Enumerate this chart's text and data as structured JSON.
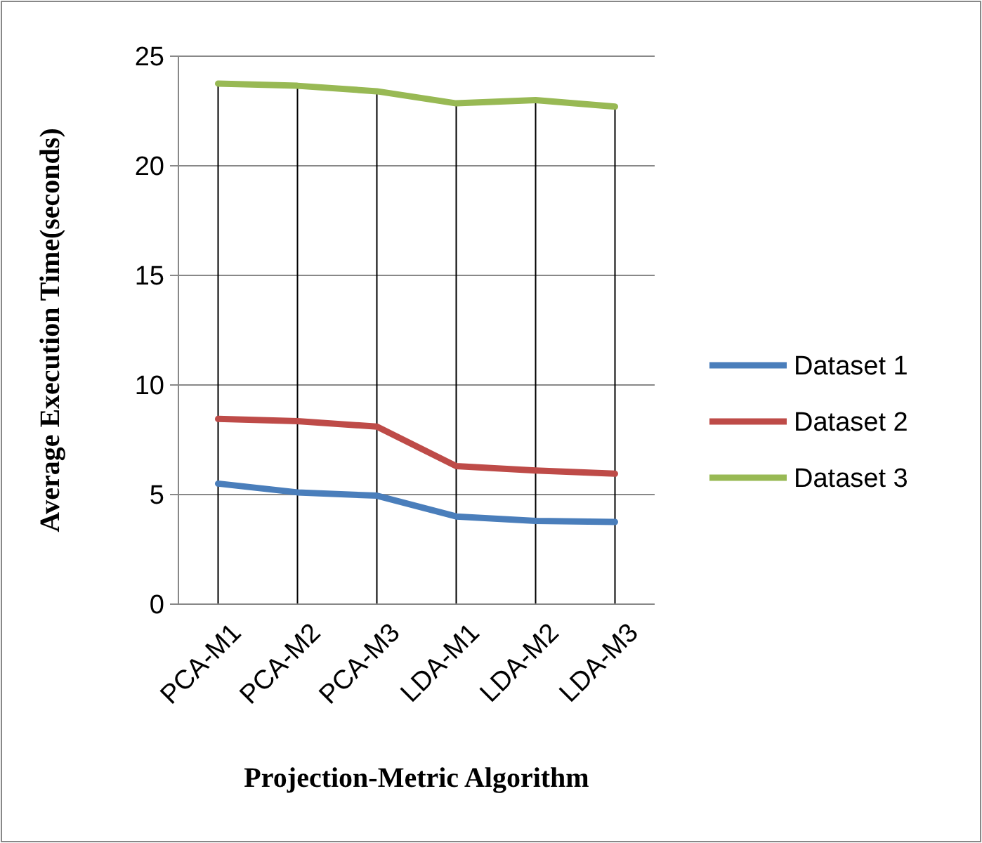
{
  "chart_data": {
    "type": "line",
    "xlabel": "Projection-Metric Algorithm",
    "ylabel": "Average Execution Time(seconds)",
    "categories": [
      "PCA-M1",
      "PCA-M2",
      "PCA-M3",
      "LDA-M1",
      "LDA-M2",
      "LDA-M3"
    ],
    "series": [
      {
        "name": "Dataset 1",
        "color": "#4a7ebb",
        "values": [
          5.5,
          5.1,
          4.95,
          4.0,
          3.8,
          3.75
        ]
      },
      {
        "name": "Dataset 2",
        "color": "#be4b48",
        "values": [
          8.45,
          8.35,
          8.1,
          6.3,
          6.1,
          5.95
        ]
      },
      {
        "name": "Dataset 3",
        "color": "#98b954",
        "values": [
          23.75,
          23.65,
          23.4,
          22.85,
          23.0,
          22.7
        ]
      }
    ],
    "ylim": [
      0,
      25
    ],
    "yticks": [
      0,
      5,
      10,
      15,
      20,
      25
    ],
    "grid": true,
    "legend": "right",
    "marker": "none",
    "line_style": "solid"
  }
}
